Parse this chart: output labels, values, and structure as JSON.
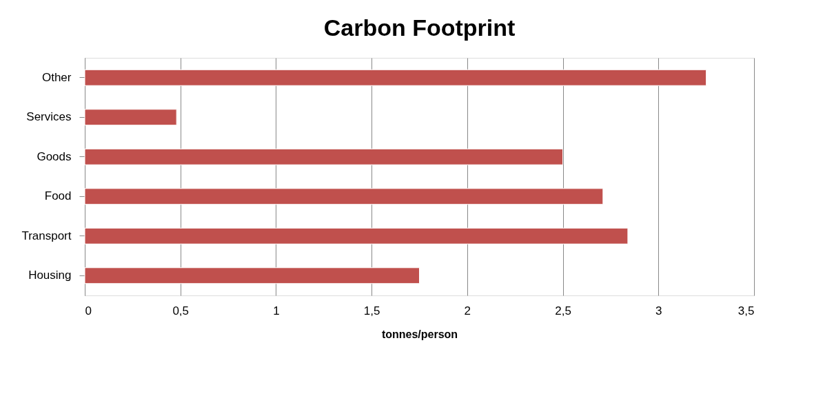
{
  "chart_data": {
    "type": "bar",
    "orientation": "horizontal",
    "title": "Carbon Footprint",
    "xlabel": "tonnes/person",
    "categories": [
      "Other",
      "Services",
      "Goods",
      "Food",
      "Transport",
      "Housing"
    ],
    "values": [
      3.25,
      0.48,
      2.5,
      2.71,
      2.84,
      1.75
    ],
    "color": "#c0504d",
    "xlim": [
      0,
      3.5
    ],
    "xticks": [
      0,
      {
        "value": 0.5,
        "label": "0,5"
      },
      1,
      {
        "value": 1.5,
        "label": "1,5"
      },
      2,
      {
        "value": 2.5,
        "label": "2,5"
      },
      3,
      {
        "value": 3.5,
        "label": "3,5"
      }
    ],
    "grid": "x"
  }
}
